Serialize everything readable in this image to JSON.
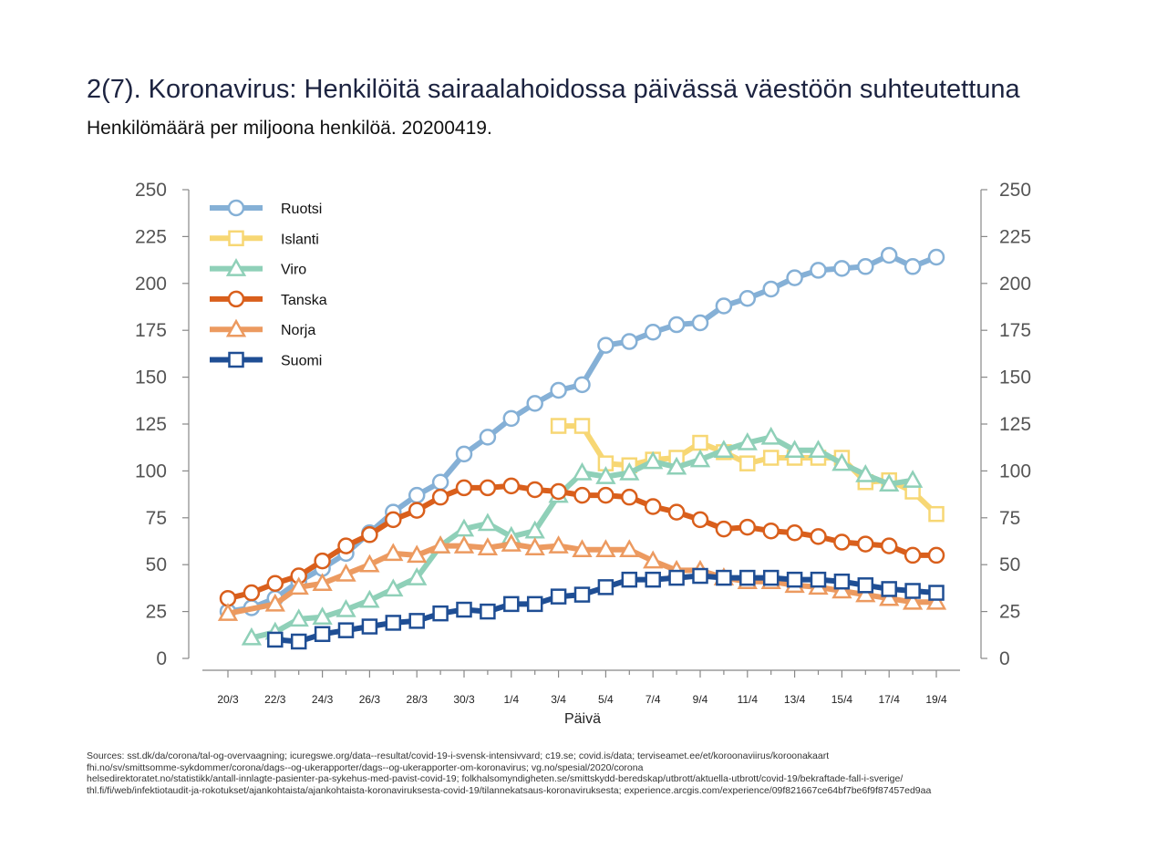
{
  "title": "2(7). Koronavirus: Henkilöitä sairaalahoidossa päivässä väestöön suhteutettuna",
  "subtitle": "Henkilömäärä per miljoona henkilöä. 20200419.",
  "sources": [
    "Sources: sst.dk/da/corona/tal-og-overvaagning; icuregswe.org/data--resultat/covid-19-i-svensk-intensivvard; c19.se; covid.is/data;  terviseamet.ee/et/koroonaviirus/koroonakaart",
    "fhi.no/sv/smittsomme-sykdommer/corona/dags--og-ukerapporter/dags--og-ukerapporter-om-koronavirus; vg.no/spesial/2020/corona",
    "helsedirektoratet.no/statistikk/antall-innlagte-pasienter-pa-sykehus-med-pavist-covid-19; folkhalsomyndigheten.se/smittskydd-beredskap/utbrott/aktuella-utbrott/covid-19/bekraftade-fall-i-sverige/",
    "thl.fi/fi/web/infektiotaudit-ja-rokotukset/ajankohtaista/ajankohtaista-koronaviruksesta-covid-19/tilannekatsaus-koronaviruksesta; experience.arcgis.com/experience/09f821667ce64bf7be6f9f87457ed9aa"
  ],
  "chart_data": {
    "type": "line",
    "xlabel": "Päivä",
    "ylabel": "",
    "ylim": [
      0,
      250
    ],
    "yticks": [
      0,
      25,
      50,
      75,
      100,
      125,
      150,
      175,
      200,
      225,
      250
    ],
    "xticks": [
      "20/3",
      "22/3",
      "24/3",
      "26/3",
      "28/3",
      "30/3",
      "1/4",
      "3/4",
      "5/4",
      "7/4",
      "9/4",
      "11/4",
      "13/4",
      "15/4",
      "17/4",
      "19/4"
    ],
    "x": [
      "20/3",
      "21/3",
      "22/3",
      "23/3",
      "24/3",
      "25/3",
      "26/3",
      "27/3",
      "28/3",
      "29/3",
      "30/3",
      "31/3",
      "1/4",
      "2/4",
      "3/4",
      "4/4",
      "5/4",
      "6/4",
      "7/4",
      "8/4",
      "9/4",
      "10/4",
      "11/4",
      "12/4",
      "13/4",
      "14/4",
      "15/4",
      "16/4",
      "17/4",
      "18/4",
      "19/4"
    ],
    "legend_position": "top-left",
    "grid": false,
    "series": [
      {
        "name": "Ruotsi",
        "color": "#85b0d6",
        "marker": "circle",
        "values": [
          25,
          27,
          32,
          41,
          48,
          56,
          67,
          78,
          87,
          94,
          109,
          118,
          128,
          136,
          143,
          146,
          167,
          169,
          174,
          178,
          179,
          188,
          192,
          197,
          203,
          207,
          208,
          209,
          215,
          209,
          214
        ]
      },
      {
        "name": "Islanti",
        "color": "#f7d774",
        "marker": "square",
        "values": [
          null,
          null,
          null,
          null,
          null,
          null,
          null,
          null,
          null,
          null,
          null,
          null,
          null,
          null,
          124,
          124,
          104,
          103,
          106,
          107,
          115,
          110,
          104,
          107,
          107,
          107,
          107,
          94,
          95,
          89,
          77
        ]
      },
      {
        "name": "Viro",
        "color": "#8fd0b8",
        "marker": "triangle",
        "values": [
          null,
          11,
          14,
          21,
          22,
          26,
          31,
          37,
          43,
          60,
          69,
          72,
          65,
          68,
          87,
          99,
          97,
          99,
          105,
          102,
          106,
          111,
          115,
          118,
          111,
          111,
          104,
          98,
          93,
          95,
          null
        ]
      },
      {
        "name": "Tanska",
        "color": "#d95f1c",
        "marker": "circle",
        "values": [
          32,
          35,
          40,
          44,
          52,
          60,
          66,
          74,
          79,
          86,
          91,
          91,
          92,
          90,
          89,
          87,
          87,
          86,
          81,
          78,
          74,
          69,
          70,
          68,
          67,
          65,
          62,
          61,
          60,
          55,
          55
        ]
      },
      {
        "name": "Norja",
        "color": "#ec9a60",
        "marker": "triangle",
        "values": [
          24,
          null,
          29,
          38,
          40,
          45,
          50,
          56,
          55,
          60,
          60,
          59,
          61,
          59,
          60,
          58,
          58,
          58,
          52,
          47,
          47,
          43,
          41,
          41,
          39,
          38,
          36,
          34,
          32,
          30,
          30
        ]
      },
      {
        "name": "Suomi",
        "color": "#1f4e94",
        "marker": "square",
        "values": [
          null,
          null,
          10,
          9,
          13,
          15,
          17,
          19,
          20,
          24,
          26,
          25,
          29,
          29,
          33,
          34,
          38,
          42,
          42,
          43,
          44,
          43,
          43,
          43,
          42,
          42,
          41,
          39,
          37,
          36,
          35
        ]
      }
    ]
  }
}
